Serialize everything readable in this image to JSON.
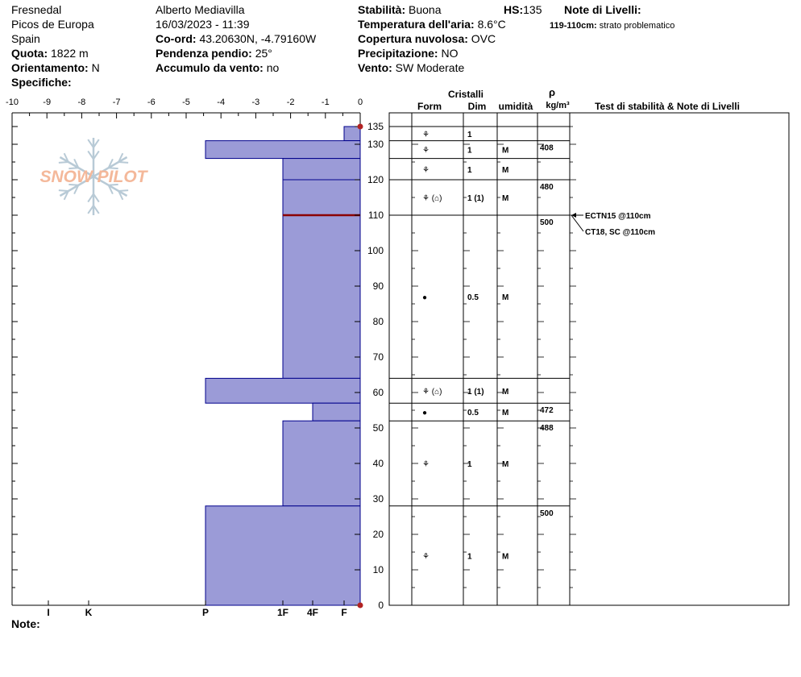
{
  "site": {
    "name": "Fresnedal",
    "range": "Picos de Europa",
    "country": "Spain",
    "elevation_label": "Quota:",
    "elevation_value": "1822 m",
    "aspect_label": "Orientamento:",
    "aspect_value": "N",
    "specifics_label": "Specifiche:"
  },
  "observer": {
    "name": "Alberto Mediavilla",
    "datetime": "16/03/2023 - 11:39",
    "coords_label": "Co-ord:",
    "coords_value": "43.20630N, -4.79160W",
    "slope_label": "Pendenza pendio:",
    "slope_value": "25°",
    "wind_loading_label": "Accumulo da vento:",
    "wind_loading_value": "no"
  },
  "conditions": {
    "stability_label": "Stabilità:",
    "stability_value": "Buona",
    "hs_label": "HS:",
    "hs_value": "135",
    "air_temp_label": "Temperatura dell'aria:",
    "air_temp_value": "8.6°C",
    "sky_label": "Copertura nuvolosa:",
    "sky_value": "OVC",
    "precip_label": "Precipitazione:",
    "precip_value": "NO",
    "wind_label": "Vento:",
    "wind_value": "SW Moderate"
  },
  "layer_notes": {
    "title": "Note di Livelli:",
    "entry_range": "119-110cm:",
    "entry_text": "strato problematico"
  },
  "logo": {
    "text": "SNOW PILOT"
  },
  "table_headers": {
    "crystals": "Cristalli",
    "form": "Form",
    "size": "Dim",
    "moisture": "umidità",
    "density_symbol": "ρ",
    "density_unit": "kg/m³",
    "tests": "Test di stabilità & Note di Livelli"
  },
  "tests": [
    {
      "text": "ECTN15 @110cm",
      "depth": 110
    },
    {
      "text": "CT18, SC @110cm",
      "depth": 110
    }
  ],
  "footer": {
    "notes_label": "Note:"
  },
  "colors": {
    "layer_fill": "#9b9bd7",
    "layer_stroke": "#00008b",
    "weak_layer": "#8b0000",
    "marker": "#b22222",
    "logo": "#f4b89a",
    "snowflake": "#b8cad6"
  },
  "chart_data": {
    "type": "bar",
    "x_ticks": [
      "-10",
      "-9",
      "-8",
      "-7",
      "-6",
      "-5",
      "-4",
      "-3",
      "-2",
      "-1",
      "0"
    ],
    "y_ticks": [
      "0",
      "10",
      "20",
      "30",
      "40",
      "50",
      "60",
      "70",
      "80",
      "90",
      "100",
      "110",
      "120",
      "130",
      "135"
    ],
    "hardness_scale": [
      "I",
      "K",
      "P",
      "1F",
      "4F",
      "F"
    ],
    "ylim": [
      0,
      135
    ],
    "layers": [
      {
        "top": 135,
        "bottom": 131,
        "hardness": "F",
        "form": "⚘",
        "size": "1",
        "moisture": "",
        "density": ""
      },
      {
        "top": 131,
        "bottom": 126,
        "hardness": "P",
        "form": "⚘",
        "size": "1",
        "moisture": "M",
        "density": "408"
      },
      {
        "top": 126,
        "bottom": 120,
        "hardness": "1F",
        "form": "⚘",
        "size": "1",
        "moisture": "M",
        "density": ""
      },
      {
        "top": 120,
        "bottom": 110,
        "hardness": "1F",
        "form": "⚘ (⌂)",
        "size": "1 (1)",
        "moisture": "M",
        "density": "480"
      },
      {
        "top": 110,
        "bottom": 64,
        "hardness": "1F",
        "form": "●",
        "size": "0.5",
        "moisture": "M",
        "density": "500"
      },
      {
        "top": 64,
        "bottom": 57,
        "hardness": "P",
        "form": "⚘ (⌂)",
        "size": "1 (1)",
        "moisture": "M",
        "density": ""
      },
      {
        "top": 57,
        "bottom": 52,
        "hardness": "4F",
        "form": "●",
        "size": "0.5",
        "moisture": "M",
        "density": "472"
      },
      {
        "top": 52,
        "bottom": 28,
        "hardness": "1F",
        "form": "⚘",
        "size": "1",
        "moisture": "M",
        "density": "488"
      },
      {
        "top": 28,
        "bottom": 0,
        "hardness": "P",
        "form": "⚘",
        "size": "1",
        "moisture": "M",
        "density": "500"
      }
    ],
    "weak_layer_depth": 110
  }
}
